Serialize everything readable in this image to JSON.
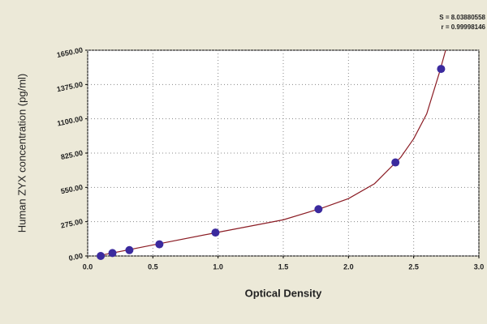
{
  "chart_data": {
    "type": "scatter",
    "annotations": [
      "S = 8.03880558",
      "r = 0.99998146"
    ],
    "x_label": "Optical Density",
    "y_label": "Human  ZYX concentration (pg/ml)",
    "xlim": [
      0,
      3
    ],
    "ylim": [
      0,
      1650
    ],
    "xticks": [
      {
        "value": 0,
        "label": "0.0"
      },
      0.5,
      {
        "value": 1,
        "label": "1.0"
      },
      1.5,
      {
        "value": 2,
        "label": "2.0"
      },
      2.5,
      {
        "value": 3,
        "label": "3.0"
      }
    ],
    "yticks": [
      {
        "value": 0,
        "label": "0.00"
      },
      {
        "value": 275,
        "label": "275.00"
      },
      {
        "value": 550,
        "label": "550.00"
      },
      {
        "value": 825,
        "label": "825.00"
      },
      {
        "value": 1100,
        "label": "1100.00"
      },
      {
        "value": 1375,
        "label": "1375.00"
      },
      {
        "value": 1650,
        "label": "1650.00"
      }
    ],
    "grid": true,
    "series": [
      {
        "type": "scatter",
        "color": "#3b2a9e",
        "x": [
          0.1,
          0.19,
          0.32,
          0.55,
          0.98,
          1.77,
          2.36,
          2.71
        ],
        "values": [
          0,
          23.44,
          46.88,
          93.75,
          187.5,
          375,
          750,
          1500
        ]
      },
      {
        "type": "line",
        "color": "#8b1c24",
        "x": [
          0.1,
          0.5,
          1.0,
          1.5,
          1.8,
          2.0,
          2.2,
          2.4,
          2.5,
          2.6,
          2.7,
          2.745
        ],
        "values": [
          5,
          88,
          190,
          290,
          385,
          460,
          580,
          790,
          940,
          1140,
          1480,
          1650
        ]
      }
    ]
  }
}
